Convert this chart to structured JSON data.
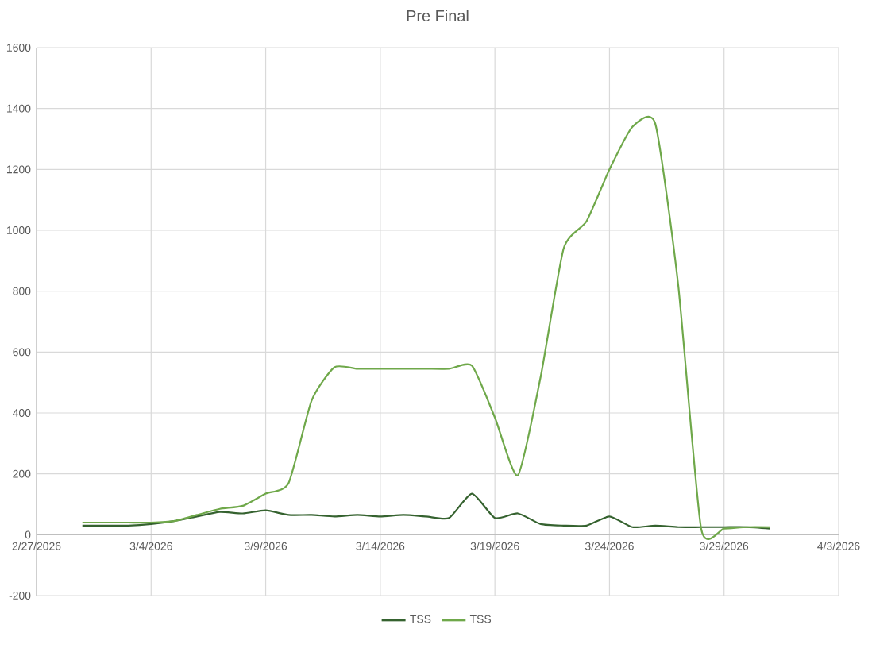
{
  "chart_data": {
    "type": "line",
    "title": "Pre Final",
    "x": [
      "2026-03-01",
      "2026-03-02",
      "2026-03-03",
      "2026-03-04",
      "2026-03-05",
      "2026-03-06",
      "2026-03-07",
      "2026-03-08",
      "2026-03-09",
      "2026-03-10",
      "2026-03-11",
      "2026-03-12",
      "2026-03-13",
      "2026-03-14",
      "2026-03-15",
      "2026-03-16",
      "2026-03-17",
      "2026-03-18",
      "2026-03-19",
      "2026-03-20",
      "2026-03-21",
      "2026-03-22",
      "2026-03-23",
      "2026-03-24",
      "2026-03-25",
      "2026-03-26",
      "2026-03-27",
      "2026-03-28",
      "2026-03-29",
      "2026-03-30",
      "2026-03-31"
    ],
    "xlim": [
      "2026-02-27",
      "2026-04-03"
    ],
    "xticks": [
      {
        "value": "2026-02-27",
        "label": "2/27/2026"
      },
      {
        "value": "2026-03-04",
        "label": "3/4/2026"
      },
      {
        "value": "2026-03-09",
        "label": "3/9/2026"
      },
      {
        "value": "2026-03-14",
        "label": "3/14/2026"
      },
      {
        "value": "2026-03-19",
        "label": "3/19/2026"
      },
      {
        "value": "2026-03-24",
        "label": "3/24/2026"
      },
      {
        "value": "2026-03-29",
        "label": "3/29/2026"
      },
      {
        "value": "2026-04-03",
        "label": "4/3/2026"
      }
    ],
    "ylim": [
      -200,
      1600
    ],
    "yticks": [
      -200,
      0,
      200,
      400,
      600,
      800,
      1000,
      1200,
      1400,
      1600
    ],
    "grid": true,
    "legend": "bottom",
    "series": [
      {
        "name": "TSS",
        "color": "#35622f",
        "values": [
          30,
          30,
          30,
          35,
          45,
          60,
          75,
          70,
          80,
          65,
          65,
          60,
          65,
          60,
          65,
          60,
          55,
          135,
          55,
          70,
          35,
          30,
          30,
          60,
          25,
          30,
          25,
          25,
          25,
          25,
          20
        ]
      },
      {
        "name": "TSS",
        "color": "#6fa84a",
        "values": [
          40,
          40,
          40,
          40,
          45,
          65,
          85,
          95,
          135,
          170,
          440,
          550,
          545,
          545,
          545,
          545,
          545,
          555,
          385,
          195,
          520,
          940,
          1030,
          1200,
          1340,
          1350,
          820,
          20,
          20,
          25,
          25
        ]
      }
    ]
  }
}
